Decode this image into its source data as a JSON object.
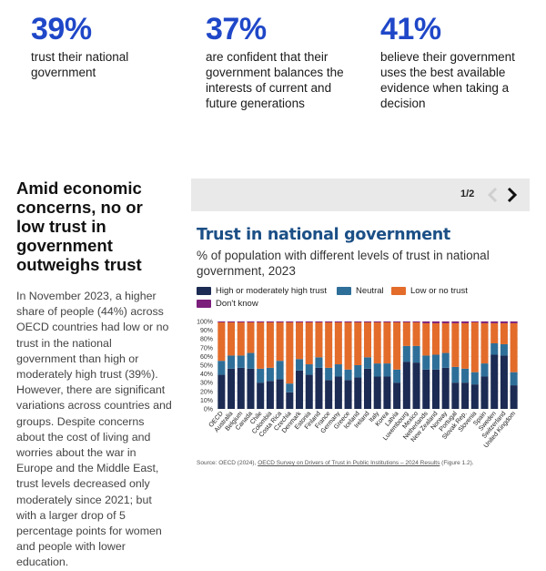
{
  "stats": [
    {
      "value": "39%",
      "text": "trust their national government"
    },
    {
      "value": "37%",
      "text": "are confident that their government balances the interests of current and future generations"
    },
    {
      "value": "41%",
      "text": "believe their government uses the best available evidence when taking a decision"
    }
  ],
  "article": {
    "heading": "Amid economic concerns, no or low trust in government outweighs trust",
    "body": "In November 2023, a higher share of people (44%) across OECD countries had low or no trust in the national government than high or moderately high trust (39%). However, there are significant variations across countries and groups. Despite concerns about the cost of living and worries about the war in Europe and the Middle East, trust levels decreased only moderately since 2021; but with a larger drop of 5 percentage points for women and people with lower education."
  },
  "carousel": {
    "page": "1/2",
    "prev_icon": "chevron-left-icon",
    "next_icon": "chevron-right-icon"
  },
  "colors": {
    "high": "#1c2b53",
    "neutral": "#2e6f99",
    "low": "#e36c2b",
    "dontknow": "#7b1f7b",
    "accent": "#1f47c8",
    "title": "#1b4f86"
  },
  "source": {
    "prefix": "Source: OECD (2024), ",
    "link": "OECD Survey on Drivers of Trust in Public Institutions – 2024 Results",
    "suffix": " (Figure 1.2)."
  },
  "chart_data": {
    "type": "bar",
    "stacked": true,
    "title": "Trust in national government",
    "subtitle": "% of population with different levels of trust in national government, 2023",
    "yticks": [
      "0%",
      "10%",
      "20%",
      "30%",
      "40%",
      "50%",
      "60%",
      "70%",
      "80%",
      "90%",
      "100%"
    ],
    "ylim": [
      0,
      100
    ],
    "legend": [
      "High or moderately high trust",
      "Neutral",
      "Low or no trust",
      "Don't know"
    ],
    "categories": [
      "OECD",
      "Australia",
      "Belgium",
      "Canada",
      "Chile",
      "Colombia",
      "Costa Rica",
      "Czechia",
      "Denmark",
      "Estonia",
      "Finland",
      "France",
      "Germany",
      "Greece",
      "Iceland",
      "Ireland",
      "Italy",
      "Korea",
      "Latvia",
      "Luxembourg",
      "Mexico",
      "Netherlands",
      "New Zealand",
      "Norway",
      "Portugal",
      "Slovak Rep.",
      "Slovenia",
      "Spain",
      "Sweden",
      "Switzerland",
      "United Kingdom"
    ],
    "series": [
      {
        "name": "High or moderately high trust",
        "values": [
          39,
          46,
          47,
          46,
          30,
          32,
          34,
          19,
          44,
          39,
          47,
          33,
          37,
          33,
          36,
          46,
          37,
          37,
          30,
          54,
          53,
          45,
          45,
          47,
          30,
          30,
          28,
          37,
          62,
          61,
          27
        ]
      },
      {
        "name": "Neutral",
        "values": [
          16,
          15,
          14,
          18,
          16,
          15,
          21,
          10,
          13,
          12,
          12,
          14,
          14,
          12,
          14,
          13,
          15,
          15,
          15,
          18,
          19,
          16,
          17,
          17,
          18,
          16,
          14,
          15,
          13,
          13,
          15
        ]
      },
      {
        "name": "Low or no trust",
        "values": [
          44,
          38,
          38,
          35,
          53,
          52,
          44,
          70,
          42,
          48,
          40,
          52,
          48,
          54,
          49,
          40,
          47,
          47,
          54,
          27,
          27,
          37,
          36,
          34,
          50,
          52,
          57,
          46,
          23,
          24,
          56
        ]
      },
      {
        "name": "Don't know",
        "values": [
          1,
          1,
          1,
          1,
          1,
          1,
          1,
          1,
          1,
          1,
          1,
          1,
          1,
          1,
          1,
          1,
          1,
          1,
          1,
          1,
          1,
          2,
          2,
          2,
          2,
          2,
          1,
          2,
          2,
          2,
          2
        ]
      }
    ]
  }
}
